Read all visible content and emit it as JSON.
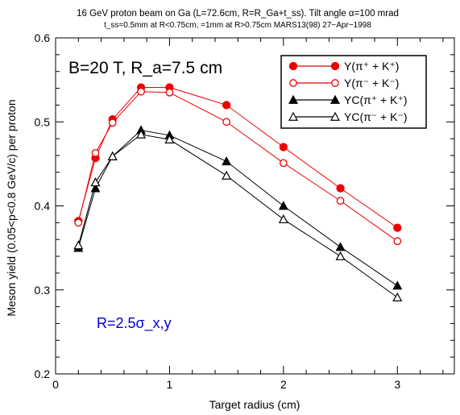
{
  "title_line1": "16 GeV proton beam on Ga (L=72.6cm, R=R_Ga+t_ss). Tilt angle α=100 mrad",
  "title_line2": "t_ss=0.5mm at R<0.75cm, =1mm at R>0.75cm   MARS13(98)   27−Apr−1998",
  "annotation_top": "B=20 T, R_a=7.5 cm",
  "annotation_mid": "R=2.5σ_x,y",
  "colors": {
    "red": "#ee0000",
    "black": "#000000",
    "blue": "#0000cc"
  },
  "chart_data": {
    "type": "line",
    "xlabel": "Target radius (cm)",
    "ylabel": "Meson yield (0.05<p<0.8 GeV/c) per proton",
    "xlim": [
      0,
      3.5
    ],
    "ylim": [
      0.2,
      0.6
    ],
    "xticks": [
      0,
      1,
      2,
      3
    ],
    "yticks": [
      0.2,
      0.3,
      0.4,
      0.5,
      0.6
    ],
    "legend_position": "top-right",
    "x": [
      0.2,
      0.35,
      0.5,
      0.75,
      1.0,
      1.5,
      2.0,
      2.5,
      3.0
    ],
    "series": [
      {
        "name": "Y(π⁺ + K⁺)",
        "marker": "filled-circle",
        "color": "#ee0000",
        "values": [
          0.382,
          0.457,
          0.503,
          0.541,
          0.541,
          0.52,
          0.47,
          0.421,
          0.374
        ]
      },
      {
        "name": "Y(π⁻ + K⁻)",
        "marker": "open-circle",
        "color": "#ee0000",
        "values": [
          0.38,
          0.463,
          0.499,
          0.536,
          0.535,
          0.5,
          0.451,
          0.406,
          0.358
        ]
      },
      {
        "name": "YC(π⁺ + K⁺)",
        "marker": "filled-triangle",
        "color": "#000000",
        "values": [
          0.35,
          0.421,
          0.459,
          0.49,
          0.484,
          0.453,
          0.4,
          0.351,
          0.305
        ]
      },
      {
        "name": "YC(π⁻ + K⁻)",
        "marker": "open-triangle",
        "color": "#000000",
        "values": [
          0.353,
          0.428,
          0.459,
          0.485,
          0.479,
          0.436,
          0.384,
          0.34,
          0.291
        ]
      }
    ]
  }
}
